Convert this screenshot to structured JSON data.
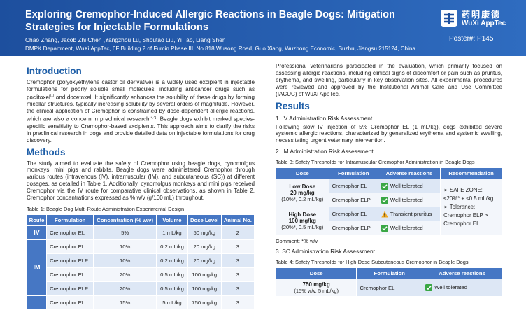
{
  "header": {
    "title": "Exploring Cremophor-Induced Allergic Reactions in Beagle Dogs: Mitigation Strategies for Injectable Formulations",
    "authors": "Chao Zhang, Jacob Zhi Chen ,Yangzhou Lu, Shoutao Liu, Yi Tao, Liang Shen",
    "affiliation": "DMPK Department, WuXi AppTec, 6F Building 2 of Fumin Phase III, No.818 Wusong Road, Guo Xiang, Wuzhong Economic, Suzhu, Jiangsu 215124, China",
    "logo_cn": "药明康德",
    "logo_en": "WuXi AppTec",
    "poster_number": "Poster#: P145"
  },
  "introduction": {
    "heading": "Introduction",
    "text": [
      "Cremophor (polyoxyethylene castor oil derivative) is a widely used excipient in injectable formulations for poorly soluble small molecules, including anticancer drugs such as paclitaxel",
      "[1]",
      " and docetaxel. It significantly enhances the solubility of these drugs by forming micellar structures, typically increasing solubility by several orders of magnitude. However, the clinical application of Cremophor is constrained by dose-dependent allergic reactions, which are also a concern in preclinical research",
      "[2,3]",
      ". Beagle dogs exhibit marked species-specific sensitivity to Cremophor-based excipients. This approach aims to clarify the risks in preclinical research in dogs and provide detailed data on injectable formulations for drug discovery."
    ]
  },
  "methods": {
    "heading": "Methods",
    "text": "The study aimed to evaluate the safety of Cremophor using beagle dogs, cynomolgus monkeys, mini pigs and rabbits. Beagle dogs were administered Cremophor through various routes (intravenous (IV), intramuscular (IM), and subcutaneous (SC)) at different dosages, as detailed in Table 1. Additionally, cynomolgus monkeys and mini pigs received Cremophor via the IV route for comparative clinical observations, as shown in Table 2. Cremophor concentrations expressed as % w/v (g/100 mL) throughout.",
    "table1": {
      "caption": "Table 1: Beagle Dog Multi-Route Administration Experimental Design",
      "headers": [
        "Route",
        "Formulation",
        "Concentration (% w/v)",
        "Volume",
        "Dose Level",
        "Animal No."
      ],
      "groups": [
        {
          "route": "IV",
          "rows": [
            [
              "Cremophor EL",
              "5%",
              "1 mL/kg",
              "50 mg/kg",
              "2"
            ]
          ]
        },
        {
          "route": "IM",
          "rows": [
            [
              "Cremophor EL",
              "10%",
              "0.2 mL/kg",
              "20 mg/kg",
              "3"
            ],
            [
              "Cremophor ELP",
              "10%",
              "0.2 mL/kg",
              "20 mg/kg",
              "3"
            ],
            [
              "Cremophor EL",
              "20%",
              "0.5 mL/kg",
              "100 mg/kg",
              "3"
            ],
            [
              "Cremophor ELP",
              "20%",
              "0.5 mL/kg",
              "100 mg/kg",
              "3"
            ]
          ]
        },
        {
          "route": null,
          "rows": [
            [
              "Cremophor EL",
              "15%",
              "5 mL/kg",
              "750 mg/kg",
              "3"
            ]
          ]
        }
      ]
    }
  },
  "continuation": "Professional veterinarians participated in the evaluation, which primarily focused on assessing allergic reactions, including clinical signs of discomfort or pain such as pruritus, erythema, and swelling, particularly in key observation sites. All experimental procedures were reviewed and approved by the Institutional Animal Care and Use Committee (IACUC) of WuXi AppTec.",
  "results": {
    "heading": "Results",
    "iv": {
      "heading": "1. IV Administration Risk Assessment",
      "text": "Following slow IV injection of 5% Cremophor EL (1 mL/kg), dogs exhibited severe systemic allergic reactions, characterized by generalized erythema and systemic swelling, necessitating urgent veterinary intervention."
    },
    "im": {
      "heading": "2. IM Administration Risk Assessment",
      "table3": {
        "caption": "Table 3: Safety Thresholds for Intramuscular Cremophor Administration in Beagle Dogs",
        "headers": [
          "Dose",
          "Formulation",
          "Adverse reactions",
          "Recommendation"
        ],
        "groups": [
          {
            "dose": "Low Dose",
            "dose_level": "20 mg/kg",
            "dose_detail": "(10%*, 0.2 mL/kg)",
            "rows": [
              {
                "formulation": "Cremophor EL",
                "reaction": "Well tolerated",
                "status": "ok"
              },
              {
                "formulation": "Cremophor ELP",
                "reaction": "Well tolerated",
                "status": "ok"
              }
            ]
          },
          {
            "dose": "High Dose",
            "dose_level": "100 mg/kg",
            "dose_detail": "(20%*, 0.5 mL/kg)",
            "rows": [
              {
                "formulation": "Cremophor EL",
                "reaction": "Transient pruritus",
                "status": "warn"
              },
              {
                "formulation": "Cremophor ELP",
                "reaction": "Well tolerated",
                "status": "ok"
              }
            ]
          }
        ],
        "recommendation": [
          "➢ SAFE ZONE:",
          "≤20%* + ≤0.5 mL/kg",
          "➢ Tolerance:",
          "Cremophor ELP >",
          "Cremophor EL"
        ]
      },
      "comment": "Comment: *% w/v"
    },
    "sc": {
      "heading": "3. SC Administration Risk Assessment",
      "table4": {
        "caption": "Table 4: Safety Thresholds for High-Dose Subcutaneous Cremophor in Beagle Dogs",
        "headers": [
          "Dose",
          "Formulation",
          "Adverse reactions"
        ],
        "groups": [
          {
            "dose_level": "750 mg/kg",
            "dose_detail": "(15% w/v, 5 mL/kg)",
            "rows": [
              {
                "formulation": "Cremophor EL",
                "reaction": "Well tolerated",
                "status": "ok"
              }
            ]
          }
        ]
      }
    }
  }
}
